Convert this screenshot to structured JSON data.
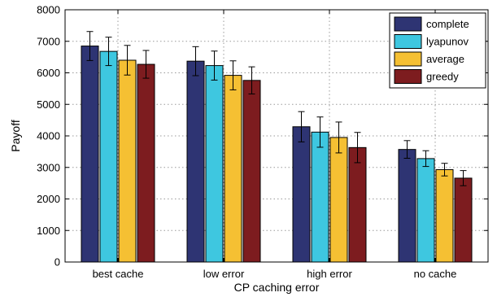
{
  "chart_data": {
    "type": "bar",
    "title": "",
    "xlabel": "CP caching error",
    "ylabel": "Payoff",
    "categories": [
      "best cache",
      "low error",
      "high error",
      "no cache"
    ],
    "ylim": [
      0,
      8000
    ],
    "yticks": [
      0,
      1000,
      2000,
      3000,
      4000,
      5000,
      6000,
      7000,
      8000
    ],
    "grid": true,
    "legend_position": "top-right",
    "series": [
      {
        "name": "complete",
        "color": "#2e3473",
        "values": [
          6850,
          6370,
          4290,
          3570
        ],
        "errors": [
          460,
          460,
          480,
          280
        ]
      },
      {
        "name": "lyapunov",
        "color": "#3ec7e0",
        "values": [
          6680,
          6230,
          4120,
          3280
        ],
        "errors": [
          450,
          460,
          480,
          250
        ]
      },
      {
        "name": "average",
        "color": "#f5c033",
        "values": [
          6400,
          5920,
          3950,
          2930
        ],
        "errors": [
          470,
          460,
          490,
          200
        ]
      },
      {
        "name": "greedy",
        "color": "#7d1c1f",
        "values": [
          6270,
          5760,
          3630,
          2660
        ],
        "errors": [
          440,
          430,
          480,
          240
        ]
      }
    ]
  }
}
